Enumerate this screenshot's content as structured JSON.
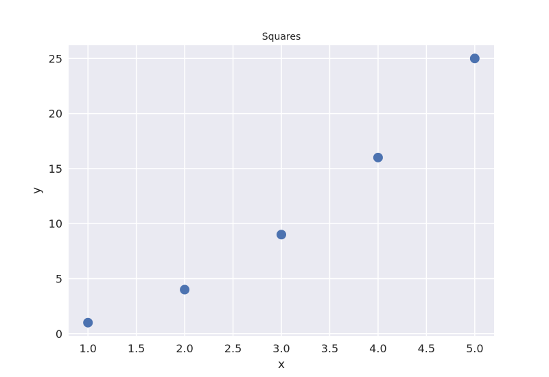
{
  "chart_data": {
    "type": "scatter",
    "title": "Squares",
    "xlabel": "x",
    "ylabel": "y",
    "x": [
      1,
      2,
      3,
      4,
      5
    ],
    "y": [
      1,
      4,
      9,
      16,
      25
    ],
    "xlim": [
      0.8,
      5.2
    ],
    "ylim": [
      -0.2,
      26.2
    ],
    "xticks": [
      "1.0",
      "1.5",
      "2.0",
      "2.5",
      "3.0",
      "3.5",
      "4.0",
      "4.5",
      "5.0"
    ],
    "yticks": [
      "0",
      "5",
      "10",
      "15",
      "20",
      "25"
    ],
    "grid": true,
    "background_color": "#eaeaf2",
    "grid_color": "#ffffff",
    "marker_color": "#4c72b0"
  }
}
